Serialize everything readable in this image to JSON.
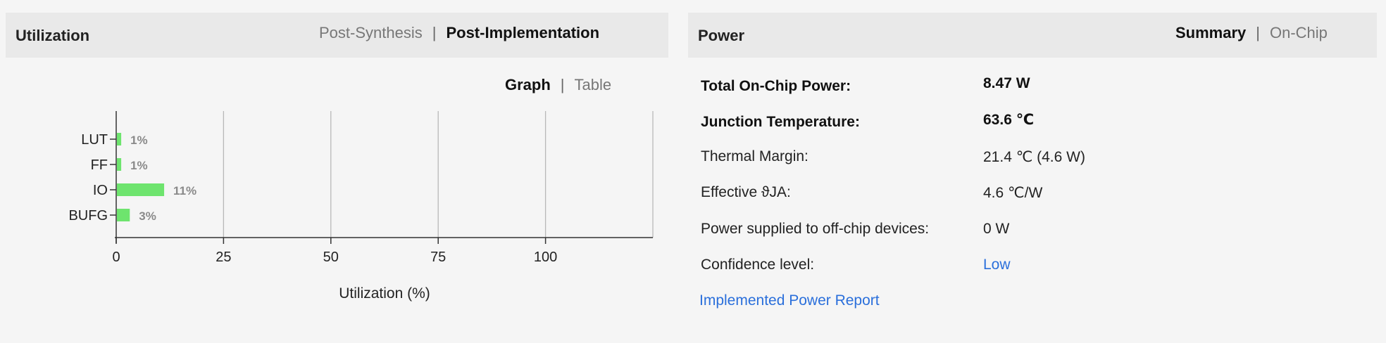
{
  "utilization": {
    "title": "Utilization",
    "tabs": [
      {
        "label": "Post-Synthesis",
        "active": false
      },
      {
        "label": "Post-Implementation",
        "active": true
      }
    ],
    "views": [
      {
        "label": "Graph",
        "active": true
      },
      {
        "label": "Table",
        "active": false
      }
    ]
  },
  "chart_data": {
    "type": "bar",
    "orientation": "horizontal",
    "categories": [
      "LUT",
      "FF",
      "IO",
      "BUFG"
    ],
    "values": [
      1,
      1,
      11,
      3
    ],
    "data_labels": [
      "1%",
      "1%",
      "11%",
      "3%"
    ],
    "xlabel": "Utilization (%)",
    "ylabel": "",
    "xlim": [
      0,
      125
    ],
    "xticks": [
      0,
      25,
      50,
      75,
      100
    ],
    "grid": true,
    "bar_color": "#6ee46e"
  },
  "power": {
    "title": "Power",
    "tabs": [
      {
        "label": "Summary",
        "active": true
      },
      {
        "label": "On-Chip",
        "active": false
      }
    ],
    "rows": [
      {
        "label": "Total On-Chip Power:",
        "value": "8.47 W",
        "bold": true
      },
      {
        "label": "Junction Temperature:",
        "value": "63.6 ℃",
        "bold": true
      },
      {
        "label": "Thermal Margin:",
        "value": "21.4 ℃ (4.6 W)",
        "bold": false
      },
      {
        "label": "Effective ϑJA:",
        "value": "4.6 ℃/W",
        "bold": false
      },
      {
        "label": "Power supplied to off-chip devices:",
        "value": "0 W",
        "bold": false
      },
      {
        "label": "Confidence level:",
        "value": "Low",
        "bold": false,
        "link": true
      }
    ],
    "report_link": "Implemented Power Report"
  },
  "colors": {
    "accent_link": "#2a6fdb",
    "bar": "#6ee46e",
    "header_bg": "#e9e9e9",
    "page_bg": "#f5f5f5"
  }
}
